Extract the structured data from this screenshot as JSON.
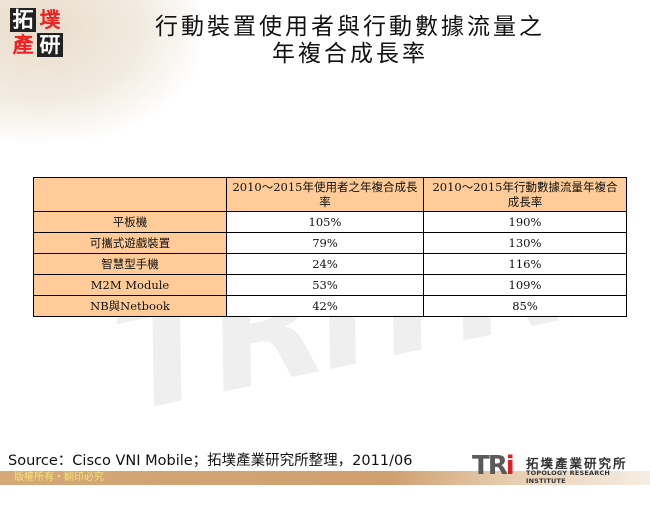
{
  "header": {
    "logo_chars": [
      "拓",
      "墣",
      "產",
      "研"
    ],
    "title_line1": "行動裝置使用者與行動數據流量之",
    "title_line2": "年複合成長率"
  },
  "table": {
    "columns": [
      "",
      "2010～2015年使用者之年複合成長率",
      "2010～2015年行動數據流量年複合成長率"
    ],
    "rows": [
      {
        "label": "平板機",
        "users_cagr": "105%",
        "traffic_cagr": "190%"
      },
      {
        "label": "可攜式遊戲裝置",
        "users_cagr": "79%",
        "traffic_cagr": "130%"
      },
      {
        "label": "智慧型手機",
        "users_cagr": "24%",
        "traffic_cagr": "116%"
      },
      {
        "label": "M2M Module",
        "users_cagr": "53%",
        "traffic_cagr": "109%"
      },
      {
        "label": "NB與Netbook",
        "users_cagr": "42%",
        "traffic_cagr": "85%"
      }
    ]
  },
  "source": "Source：Cisco VNI Mobile；拓墣產業研究所整理，2011/06",
  "footer": {
    "copyright": "版權所有・翻印必究",
    "brand_mark": "TRi",
    "brand_name_cn": "拓墣產業研究所",
    "brand_name_en": "TOPOLOGY RESEARCH INSTITUTE"
  },
  "watermark": "TRiTRi",
  "colors": {
    "header_fill": "#ffcc99",
    "footer_bar": "#d4a878",
    "copyright_text": "#f5e27a",
    "logo_red": "#e22222"
  }
}
